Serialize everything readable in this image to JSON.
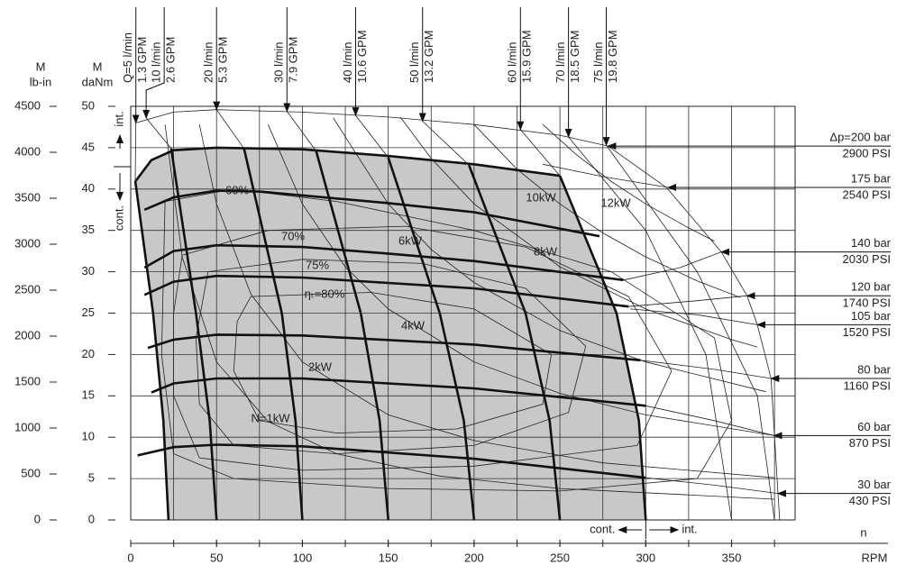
{
  "chart_data": {
    "type": "line",
    "x_symbol": "n",
    "x_label": "RPM",
    "y_symbol": "M",
    "y_label": "daNm",
    "y2_symbol": "M",
    "y2_label": "lb-in",
    "xlim": [
      0,
      387
    ],
    "ylim": [
      0,
      50
    ],
    "y2lim": [
      0,
      4500
    ],
    "xticks": [
      0,
      50,
      100,
      150,
      200,
      250,
      300,
      350
    ],
    "xgrid": [
      25,
      50,
      75,
      100,
      125,
      150,
      175,
      200,
      225,
      250,
      275,
      300,
      325,
      350,
      375
    ],
    "yticks": [
      0,
      5,
      10,
      15,
      20,
      25,
      30,
      35,
      40,
      45,
      50
    ],
    "y2ticks": [
      0,
      500,
      1000,
      1500,
      2000,
      2500,
      3000,
      3500,
      4000,
      4500
    ],
    "grid": true,
    "region_color": "#c8c8c8",
    "annotations": {
      "int_left": "int.",
      "cont_left": "cont.",
      "cont_bottom": "cont.",
      "int_bottom": "int."
    },
    "int_envelope": {
      "x": [
        278,
        312,
        344,
        359,
        365,
        373,
        375,
        377,
        378
      ],
      "values": [
        45.2,
        40.2,
        32.4,
        27.1,
        23.6,
        17.1,
        10.2,
        3.2,
        0
      ]
    },
    "pressure": [
      {
        "name": "Δp=200 bar",
        "psi": "2900 PSI",
        "x": [
          3,
          12,
          25,
          50,
          100,
          150,
          200,
          250
        ],
        "values": [
          41,
          43.5,
          44.7,
          45,
          44.8,
          44,
          43,
          41.6
        ],
        "x_int": [
          3,
          25,
          50,
          100,
          150,
          200,
          250,
          278
        ],
        "values_int": [
          48,
          49.3,
          49.6,
          49.3,
          48.7,
          47.8,
          46.5,
          45.2
        ]
      },
      {
        "name": "175 bar",
        "psi": "2540 PSI",
        "x": [
          8,
          25,
          50,
          75,
          150,
          200,
          273
        ],
        "values": [
          37.5,
          39,
          39.8,
          39.7,
          38.3,
          37.2,
          34.3
        ],
        "x_int": [
          240,
          275,
          313
        ],
        "values_int": [
          43,
          41.5,
          40.2
        ]
      },
      {
        "name": "140 bar",
        "psi": "2030 PSI",
        "x": [
          8,
          25,
          50,
          100,
          150,
          200,
          287
        ],
        "values": [
          30.5,
          32.5,
          33.2,
          33,
          32.2,
          31.3,
          29
        ],
        "x_int": [
          287,
          320,
          344
        ],
        "values_int": [
          29,
          30.5,
          32.4
        ]
      },
      {
        "name": "120 bar",
        "psi": "1740 PSI",
        "x": [
          8,
          25,
          50,
          100,
          200,
          290
        ],
        "values": [
          27.2,
          28.8,
          29.5,
          29.3,
          28,
          25.8
        ],
        "x_int": [
          290,
          330,
          359
        ],
        "values_int": [
          25.8,
          26.5,
          27.1
        ]
      },
      {
        "name": "105 bar",
        "psi": "1520 PSI",
        "x_int": [
          291,
          330,
          365
        ],
        "values_int": [
          25.5,
          24.8,
          23.6
        ]
      },
      {
        "name": "80 bar",
        "psi": "1160 PSI",
        "x": [
          10,
          25,
          50,
          100,
          200,
          297
        ],
        "values": [
          20.8,
          21.8,
          22.4,
          22.3,
          21.2,
          19.3
        ],
        "x_int": [
          297,
          340,
          373
        ],
        "values_int": [
          19.3,
          18.2,
          17.1
        ]
      },
      {
        "name": "60 bar",
        "psi": "870 PSI",
        "x": [
          12,
          25,
          50,
          100,
          200,
          300
        ],
        "values": [
          15.4,
          16.5,
          17.1,
          17.1,
          15.9,
          13.8
        ],
        "x_int": [
          300,
          340,
          374.7
        ],
        "values_int": [
          13.8,
          12,
          10.2
        ]
      },
      {
        "name": "30 bar",
        "psi": "430 PSI",
        "x": [
          4,
          25,
          50,
          100,
          200,
          300
        ],
        "values": [
          7.8,
          8.8,
          9.1,
          8.9,
          7.4,
          5.1
        ],
        "x_int": [
          300,
          340,
          377
        ],
        "values_int": [
          5.1,
          4.2,
          3.2
        ]
      }
    ],
    "flow": [
      {
        "name": "Q=5 l/min",
        "gpm": "1.3 GPM",
        "x": [
          2.6,
          13,
          19,
          22
        ],
        "values": [
          41,
          25,
          12,
          0
        ],
        "x_int": [
          3,
          2.6
        ],
        "values_int": [
          48,
          41
        ]
      },
      {
        "name": "10 l/min",
        "gpm": "2.6 GPM",
        "x": [
          23.6,
          38,
          46,
          50
        ],
        "values": [
          44.9,
          25,
          12,
          0
        ],
        "x_int": [
          9,
          23.6
        ],
        "values_int": [
          48.6,
          44.9
        ]
      },
      {
        "name": "20 l/min",
        "gpm": "5.3 GPM",
        "x": [
          66,
          88,
          96,
          100
        ],
        "values": [
          44.9,
          25,
          12,
          0
        ],
        "x_int": [
          50,
          66
        ],
        "values_int": [
          49.6,
          44.9
        ]
      },
      {
        "name": "30 l/min",
        "gpm": "7.9 GPM",
        "x": [
          108,
          134,
          145,
          150
        ],
        "values": [
          44.6,
          25,
          12,
          0
        ],
        "x_int": [
          91,
          108
        ],
        "values_int": [
          49.4,
          44.6
        ]
      },
      {
        "name": "40 l/min",
        "gpm": "10.6 GPM",
        "x": [
          150,
          180,
          194,
          200
        ],
        "values": [
          43.8,
          25,
          12,
          0
        ],
        "x_int": [
          131,
          150
        ],
        "values_int": [
          48.9,
          43.8
        ]
      },
      {
        "name": "50 l/min",
        "gpm": "13.2 GPM",
        "x": [
          197,
          230,
          244,
          250
        ],
        "values": [
          42.9,
          25,
          12,
          0
        ],
        "x_int": [
          170,
          197
        ],
        "values_int": [
          48.2,
          42.9
        ]
      },
      {
        "name": "60 l/min",
        "gpm": "15.9 GPM",
        "x": [
          250,
          283,
          296,
          300
        ],
        "values": [
          41.6,
          25,
          12,
          0
        ],
        "x_int": [
          227,
          250
        ],
        "values_int": [
          47.2,
          41.6
        ]
      },
      {
        "name": "70 l/min",
        "gpm": "18.5 GPM",
        "x_int": [
          255,
          300,
          335,
          350
        ],
        "values_int": [
          46.3,
          35,
          20,
          0
        ]
      },
      {
        "name": "75 l/min",
        "gpm": "19.8 GPM",
        "x_int": [
          277,
          330,
          365,
          375
        ],
        "values_int": [
          45.3,
          30,
          15,
          0
        ]
      }
    ],
    "power": [
      {
        "name": "N=1kW",
        "x": [
          20,
          30,
          50,
          80,
          120,
          180,
          250,
          375
        ],
        "values": [
          47.8,
          31.8,
          19.1,
          11.9,
          8,
          5.3,
          3.8,
          2.5
        ]
      },
      {
        "name": "2kW",
        "x": [
          40,
          50,
          70,
          100,
          150,
          200,
          275,
          375
        ],
        "values": [
          47.8,
          38.2,
          27.3,
          19.1,
          12.7,
          9.6,
          6.9,
          5.1
        ]
      },
      {
        "name": "4kW",
        "x": [
          80,
          100,
          125,
          150,
          200,
          250,
          300,
          375
        ],
        "values": [
          47.8,
          38.2,
          30.6,
          25.5,
          19.1,
          15.3,
          12.7,
          10.2
        ]
      },
      {
        "name": "6kW",
        "x": [
          118,
          150,
          175,
          200,
          250,
          300,
          370
        ],
        "values": [
          48.6,
          38.2,
          32.7,
          28.7,
          22.9,
          19.1,
          15.5
        ]
      },
      {
        "name": "8kW",
        "x": [
          157,
          175,
          200,
          250,
          300,
          350,
          365
        ],
        "values": [
          48.7,
          43.7,
          38.2,
          30.6,
          25.5,
          21.8,
          20.9
        ]
      },
      {
        "name": "10kW",
        "x": [
          200,
          225,
          250,
          275,
          300,
          330,
          355
        ],
        "values": [
          47.8,
          42.4,
          38.2,
          34.7,
          31.8,
          28.9,
          26.9
        ]
      },
      {
        "name": "12kW",
        "x": [
          240,
          260,
          280,
          300,
          325,
          340
        ],
        "values": [
          47.8,
          44.1,
          40.9,
          38.2,
          35.3,
          33.7
        ]
      }
    ],
    "efficiency": [
      {
        "name": "60%",
        "x": [
          20,
          60,
          120,
          200,
          280,
          340,
          350,
          330,
          250,
          150,
          60,
          25,
          18,
          20
        ],
        "values": [
          38.5,
          40,
          38.5,
          35,
          30,
          22,
          12,
          5,
          3.5,
          3.8,
          5,
          8,
          20,
          38.5
        ]
      },
      {
        "name": "70%",
        "x": [
          30,
          80,
          160,
          230,
          290,
          315,
          295,
          200,
          100,
          40,
          25,
          25,
          30
        ],
        "values": [
          32,
          35,
          35.5,
          33,
          27,
          18,
          9,
          6.5,
          6,
          7.5,
          15,
          25,
          32
        ]
      },
      {
        "name": "75%",
        "x": [
          45,
          100,
          170,
          230,
          265,
          255,
          200,
          120,
          60,
          40,
          38,
          45
        ],
        "values": [
          30,
          31.5,
          31,
          28,
          21,
          13,
          9,
          8,
          9,
          14,
          22,
          30
        ]
      },
      {
        "name": "ηₜ=80%",
        "x": [
          70,
          140,
          200,
          245,
          240,
          190,
          120,
          75,
          60,
          62,
          70
        ],
        "values": [
          27,
          27.5,
          25.5,
          20,
          14,
          11,
          10.5,
          12,
          18,
          24,
          27
        ]
      }
    ]
  }
}
